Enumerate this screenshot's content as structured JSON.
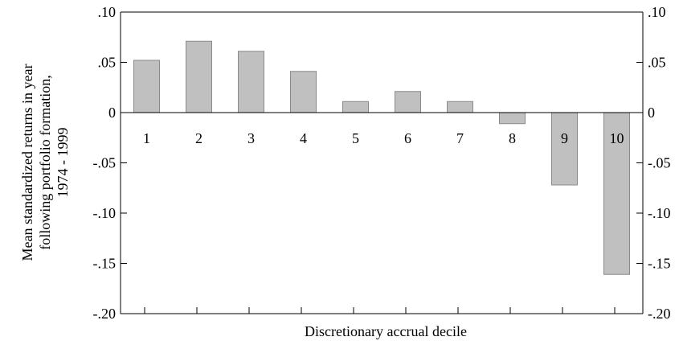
{
  "chart_data": {
    "type": "bar",
    "categories": [
      "1",
      "2",
      "3",
      "4",
      "5",
      "6",
      "7",
      "8",
      "9",
      "10"
    ],
    "values": [
      0.052,
      0.071,
      0.061,
      0.041,
      0.011,
      0.021,
      0.011,
      -0.011,
      -0.072,
      -0.161
    ],
    "title": "",
    "xlabel": "Discretionary accrual decile",
    "ylabel_lines": [
      "Mean standardized returns in year",
      "following portfolio formation,",
      "1974 - 1999"
    ],
    "ylim": [
      -0.2,
      0.1
    ],
    "yticks": [
      0.1,
      0.05,
      0,
      -0.05,
      -0.1,
      -0.15,
      -0.2
    ],
    "ytick_labels": [
      ".10",
      ".05",
      "0",
      "-.05",
      "-.10",
      "-.15",
      "-.20"
    ],
    "grid": false,
    "legend": "none",
    "bar_color": "#c0c0c0",
    "bar_edge_color": "#8a8a8a",
    "axis_color": "#000000"
  }
}
